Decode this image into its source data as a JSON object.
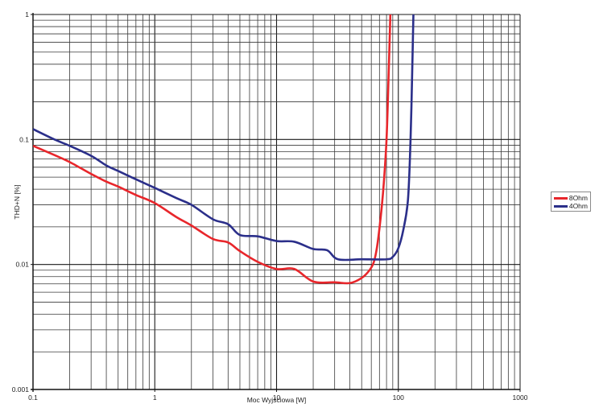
{
  "chart_data": {
    "type": "line",
    "title": "",
    "xlabel": "Moc Wyjściowa [W]",
    "ylabel": "THD+N [%]",
    "xscale": "log",
    "yscale": "log",
    "xlim": [
      0.1,
      1000
    ],
    "ylim": [
      0.001,
      1
    ],
    "x_ticks": [
      "0.1",
      "1",
      "10",
      "100",
      "1000"
    ],
    "y_ticks": [
      "0.001",
      "0.01",
      "0.1",
      "1"
    ],
    "grid": true,
    "legend_position": "right",
    "series": [
      {
        "name": "8Ohm",
        "color": "#e8262b",
        "points": [
          [
            0.1,
            0.089
          ],
          [
            0.15,
            0.075
          ],
          [
            0.2,
            0.066
          ],
          [
            0.3,
            0.053
          ],
          [
            0.4,
            0.046
          ],
          [
            0.5,
            0.042
          ],
          [
            0.7,
            0.036
          ],
          [
            1,
            0.031
          ],
          [
            1.5,
            0.024
          ],
          [
            2,
            0.0205
          ],
          [
            3,
            0.016
          ],
          [
            4,
            0.015
          ],
          [
            5,
            0.0128
          ],
          [
            7,
            0.0105
          ],
          [
            10,
            0.0092
          ],
          [
            14,
            0.0092
          ],
          [
            20,
            0.0073
          ],
          [
            30,
            0.0072
          ],
          [
            40,
            0.0071
          ],
          [
            50,
            0.0078
          ],
          [
            58,
            0.009
          ],
          [
            63,
            0.0105
          ],
          [
            67,
            0.014
          ],
          [
            72,
            0.025
          ],
          [
            76,
            0.045
          ],
          [
            80,
            0.1
          ],
          [
            83,
            0.3
          ],
          [
            86,
            1.0
          ]
        ]
      },
      {
        "name": "4Ohm",
        "color": "#2b2f8a",
        "points": [
          [
            0.1,
            0.121
          ],
          [
            0.15,
            0.1
          ],
          [
            0.2,
            0.089
          ],
          [
            0.3,
            0.074
          ],
          [
            0.4,
            0.062
          ],
          [
            0.5,
            0.056
          ],
          [
            0.7,
            0.048
          ],
          [
            1,
            0.041
          ],
          [
            1.5,
            0.034
          ],
          [
            2,
            0.03
          ],
          [
            3,
            0.023
          ],
          [
            4,
            0.021
          ],
          [
            5,
            0.0172
          ],
          [
            7,
            0.0168
          ],
          [
            10,
            0.0154
          ],
          [
            14,
            0.0152
          ],
          [
            20,
            0.0133
          ],
          [
            26,
            0.013
          ],
          [
            32,
            0.011
          ],
          [
            50,
            0.011
          ],
          [
            80,
            0.011
          ],
          [
            90,
            0.0115
          ],
          [
            100,
            0.0135
          ],
          [
            110,
            0.019
          ],
          [
            120,
            0.033
          ],
          [
            126,
            0.1
          ],
          [
            130,
            0.35
          ],
          [
            133,
            1.0
          ]
        ]
      }
    ]
  },
  "legend": {
    "items": [
      {
        "label": "8Ohm",
        "color": "#e8262b"
      },
      {
        "label": "4Ohm",
        "color": "#2b2f8a"
      }
    ]
  }
}
